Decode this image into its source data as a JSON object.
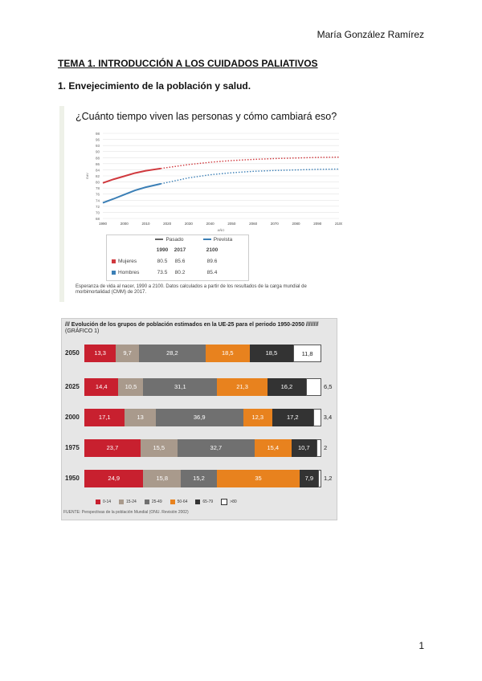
{
  "header": {
    "author": "María González Ramírez"
  },
  "heading1": "TEMA 1. INTRODUCCIÓN A LOS CUIDADOS PALIATIVOS",
  "heading2": "1. Envejecimiento de la población y salud.",
  "figure1": {
    "title": "¿Cuánto tiempo viven las personas y cómo cambiará eso?",
    "legend": {
      "pasado": "Pasado",
      "prevista": "Prevista",
      "col_1990": "1990",
      "col_2017": "2017",
      "col_2100": "2100",
      "mujeres": "Mujeres",
      "hombres": "Hombres",
      "m_1990": "80.5",
      "m_2017": "85.6",
      "m_2100": "89.6",
      "h_1990": "73.5",
      "h_2017": "80.2",
      "h_2100": "85.4"
    },
    "caption": "Esperanza de vida al nacer, 1990 a 2100. Datos calculados a partir de los resultados de la carga mundial de morbimortalidad (CMM) de 2017.",
    "colors": {
      "mujeres": "#d0393e",
      "hombres": "#3b7fb6"
    }
  },
  "chart_data": [
    {
      "type": "line",
      "title": "¿Cuánto tiempo viven las personas y cómo cambiará eso?",
      "xlabel": "AÑO",
      "ylabel": "EdV",
      "xlim": [
        1990,
        2100
      ],
      "ylim": [
        68,
        98
      ],
      "x_ticks": [
        "1990",
        "2000",
        "2010",
        "2020",
        "2030",
        "2040",
        "2050",
        "2060",
        "2070",
        "2080",
        "2090",
        "2100"
      ],
      "y_ticks": [
        "98",
        "96",
        "93",
        "90",
        "88",
        "86",
        "84",
        "82",
        "80",
        "78",
        "76",
        "74",
        "72",
        "70",
        "68"
      ],
      "series": [
        {
          "name": "Mujeres (pasado)",
          "x": [
            1990,
            1995,
            2000,
            2005,
            2010,
            2017
          ],
          "values": [
            80.5,
            81.8,
            82.9,
            84.0,
            84.8,
            85.6
          ]
        },
        {
          "name": "Mujeres (prevista)",
          "x": [
            2017,
            2030,
            2040,
            2050,
            2060,
            2070,
            2080,
            2090,
            2100
          ],
          "values": [
            85.6,
            87.0,
            87.8,
            88.4,
            88.8,
            89.1,
            89.3,
            89.5,
            89.6
          ]
        },
        {
          "name": "Hombres (pasado)",
          "x": [
            1990,
            1995,
            2000,
            2005,
            2010,
            2017
          ],
          "values": [
            73.5,
            74.9,
            76.4,
            77.9,
            79.0,
            80.2
          ]
        },
        {
          "name": "Hombres (prevista)",
          "x": [
            2017,
            2030,
            2040,
            2050,
            2060,
            2070,
            2080,
            2090,
            2100
          ],
          "values": [
            80.2,
            82.3,
            83.4,
            84.1,
            84.6,
            84.9,
            85.1,
            85.3,
            85.4
          ]
        }
      ]
    },
    {
      "type": "bar",
      "title": "/// Evolución de los grupos de población estimados en la UE-25 para el periodo 1950-2050 ////////",
      "subtitle": "(GRÁFICO 1)",
      "categories": [
        "2050",
        "2025",
        "2000",
        "1975",
        "1950"
      ],
      "series": [
        {
          "name": "0-14",
          "values": [
            13.3,
            14.4,
            17.1,
            23.7,
            24.9
          ],
          "labels": [
            "13,3",
            "14,4",
            "17,1",
            "23,7",
            "24,9"
          ]
        },
        {
          "name": "15-24",
          "values": [
            9.7,
            10.5,
            13,
            15.5,
            15.8
          ],
          "labels": [
            "9,7",
            "10,5",
            "13",
            "15,5",
            "15,8"
          ]
        },
        {
          "name": "25-49",
          "values": [
            28.2,
            31.1,
            36.9,
            32.7,
            15.2
          ],
          "labels": [
            "28,2",
            "31,1",
            "36,9",
            "32,7",
            "15,2"
          ]
        },
        {
          "name": "50-64",
          "values": [
            18.5,
            21.3,
            12.3,
            15.4,
            35
          ],
          "labels": [
            "18,5",
            "21,3",
            "12,3",
            "15,4",
            "35"
          ]
        },
        {
          "name": "65-79",
          "values": [
            18.5,
            16.2,
            17.2,
            10.7,
            7.9
          ],
          "labels": [
            "18,5",
            "16,2",
            "17,2",
            "10,7",
            "7,9"
          ]
        },
        {
          "name": ">80",
          "values": [
            11.8,
            6.5,
            3.4,
            2,
            1.2
          ],
          "labels": [
            "11,8",
            "6,5",
            "3,4",
            "2",
            "1,2"
          ]
        }
      ],
      "source": "FUENTE: Perspectivas de la población Mundial (ONU. Revisión 2002)"
    }
  ],
  "figure2": {
    "colors": [
      "#c8202f",
      "#a99a8c",
      "#707070",
      "#e8821e",
      "#333333",
      "#ffffff"
    ],
    "legend_labels": [
      "0-14",
      "15-24",
      "25-49",
      "50-64",
      "65-79",
      ">80"
    ]
  },
  "footer": {
    "page_number": "1"
  }
}
